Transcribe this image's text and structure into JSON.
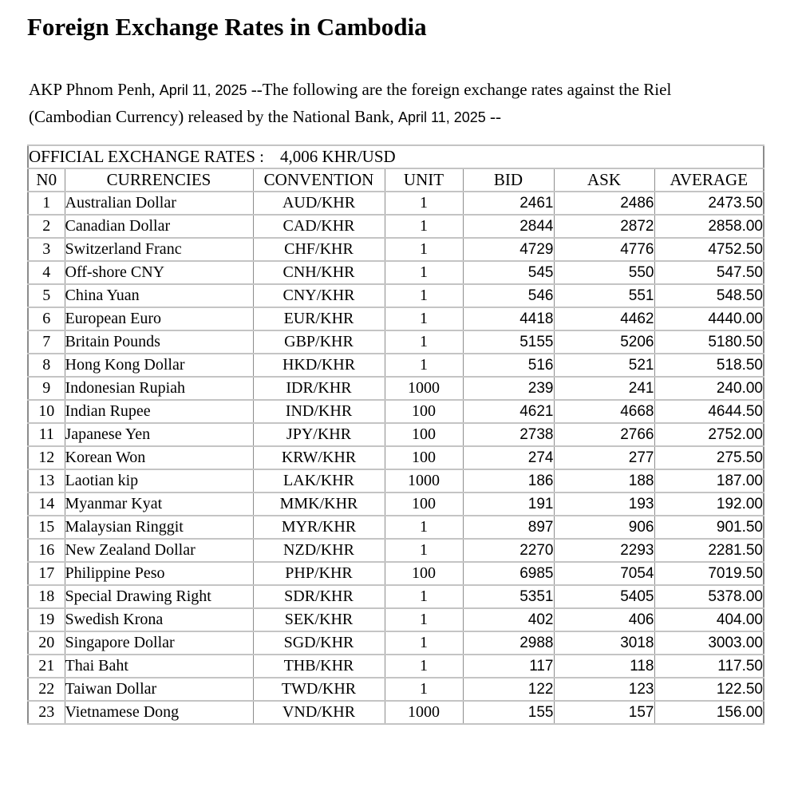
{
  "page": {
    "title": "Foreign Exchange Rates in Cambodia"
  },
  "intro": {
    "line1_lead": "AKP Phnom Penh, ",
    "line1_date": "April 11, 2025",
    "line1_rest": " --The following are the foreign exchange rates against the Riel",
    "line2_lead": "(Cambodian Currency) released by the National Bank, ",
    "line2_date": "April 11, 2025",
    "line2_rest": " --"
  },
  "rates_table": {
    "official_label": "OFFICIAL EXCHANGE RATES :",
    "official_rate": "4,006 KHR/USD",
    "columns": [
      "N0",
      "CURRENCIES",
      "CONVENTION",
      "UNIT",
      "BID",
      "ASK",
      "AVERAGE"
    ],
    "rows": [
      {
        "no": "1",
        "currency": "Australian Dollar",
        "convention": "AUD/KHR",
        "unit": "1",
        "bid": "2461",
        "ask": "2486",
        "average": "2473.50"
      },
      {
        "no": "2",
        "currency": "Canadian Dollar",
        "convention": "CAD/KHR",
        "unit": "1",
        "bid": "2844",
        "ask": "2872",
        "average": "2858.00"
      },
      {
        "no": "3",
        "currency": "Switzerland Franc",
        "convention": "CHF/KHR",
        "unit": "1",
        "bid": "4729",
        "ask": "4776",
        "average": "4752.50"
      },
      {
        "no": "4",
        "currency": "Off-shore CNY",
        "convention": "CNH/KHR",
        "unit": "1",
        "bid": "545",
        "ask": "550",
        "average": "547.50"
      },
      {
        "no": "5",
        "currency": "China Yuan",
        "convention": "CNY/KHR",
        "unit": "1",
        "bid": "546",
        "ask": "551",
        "average": "548.50"
      },
      {
        "no": "6",
        "currency": "European Euro",
        "convention": "EUR/KHR",
        "unit": "1",
        "bid": "4418",
        "ask": "4462",
        "average": "4440.00"
      },
      {
        "no": "7",
        "currency": "Britain Pounds",
        "convention": "GBP/KHR",
        "unit": "1",
        "bid": "5155",
        "ask": "5206",
        "average": "5180.50"
      },
      {
        "no": "8",
        "currency": "Hong Kong Dollar",
        "convention": "HKD/KHR",
        "unit": "1",
        "bid": "516",
        "ask": "521",
        "average": "518.50"
      },
      {
        "no": "9",
        "currency": "Indonesian Rupiah",
        "convention": "IDR/KHR",
        "unit": "1000",
        "bid": "239",
        "ask": "241",
        "average": "240.00"
      },
      {
        "no": "10",
        "currency": "Indian Rupee",
        "convention": "IND/KHR",
        "unit": "100",
        "bid": "4621",
        "ask": "4668",
        "average": "4644.50"
      },
      {
        "no": "11",
        "currency": "Japanese Yen",
        "convention": "JPY/KHR",
        "unit": "100",
        "bid": "2738",
        "ask": "2766",
        "average": "2752.00"
      },
      {
        "no": "12",
        "currency": "Korean Won",
        "convention": "KRW/KHR",
        "unit": "100",
        "bid": "274",
        "ask": "277",
        "average": "275.50"
      },
      {
        "no": "13",
        "currency": "Laotian kip",
        "convention": "LAK/KHR",
        "unit": "1000",
        "bid": "186",
        "ask": "188",
        "average": "187.00"
      },
      {
        "no": "14",
        "currency": "Myanmar Kyat",
        "convention": "MMK/KHR",
        "unit": "100",
        "bid": "191",
        "ask": "193",
        "average": "192.00"
      },
      {
        "no": "15",
        "currency": "Malaysian Ringgit",
        "convention": "MYR/KHR",
        "unit": "1",
        "bid": "897",
        "ask": "906",
        "average": "901.50"
      },
      {
        "no": "16",
        "currency": "New Zealand Dollar",
        "convention": "NZD/KHR",
        "unit": "1",
        "bid": "2270",
        "ask": "2293",
        "average": "2281.50"
      },
      {
        "no": "17",
        "currency": "Philippine Peso",
        "convention": "PHP/KHR",
        "unit": "100",
        "bid": "6985",
        "ask": "7054",
        "average": "7019.50"
      },
      {
        "no": "18",
        "currency": "Special Drawing Right",
        "convention": "SDR/KHR",
        "unit": "1",
        "bid": "5351",
        "ask": "5405",
        "average": "5378.00"
      },
      {
        "no": "19",
        "currency": "Swedish Krona",
        "convention": "SEK/KHR",
        "unit": "1",
        "bid": "402",
        "ask": "406",
        "average": "404.00"
      },
      {
        "no": "20",
        "currency": "Singapore Dollar",
        "convention": "SGD/KHR",
        "unit": "1",
        "bid": "2988",
        "ask": "3018",
        "average": "3003.00"
      },
      {
        "no": "21",
        "currency": "Thai Baht",
        "convention": "THB/KHR",
        "unit": "1",
        "bid": "117",
        "ask": "118",
        "average": "117.50"
      },
      {
        "no": "22",
        "currency": "Taiwan Dollar",
        "convention": "TWD/KHR",
        "unit": "1",
        "bid": "122",
        "ask": "123",
        "average": "122.50"
      },
      {
        "no": "23",
        "currency": "Vietnamese Dong",
        "convention": "VND/KHR",
        "unit": "1000",
        "bid": "155",
        "ask": "157",
        "average": "156.00"
      }
    ]
  }
}
